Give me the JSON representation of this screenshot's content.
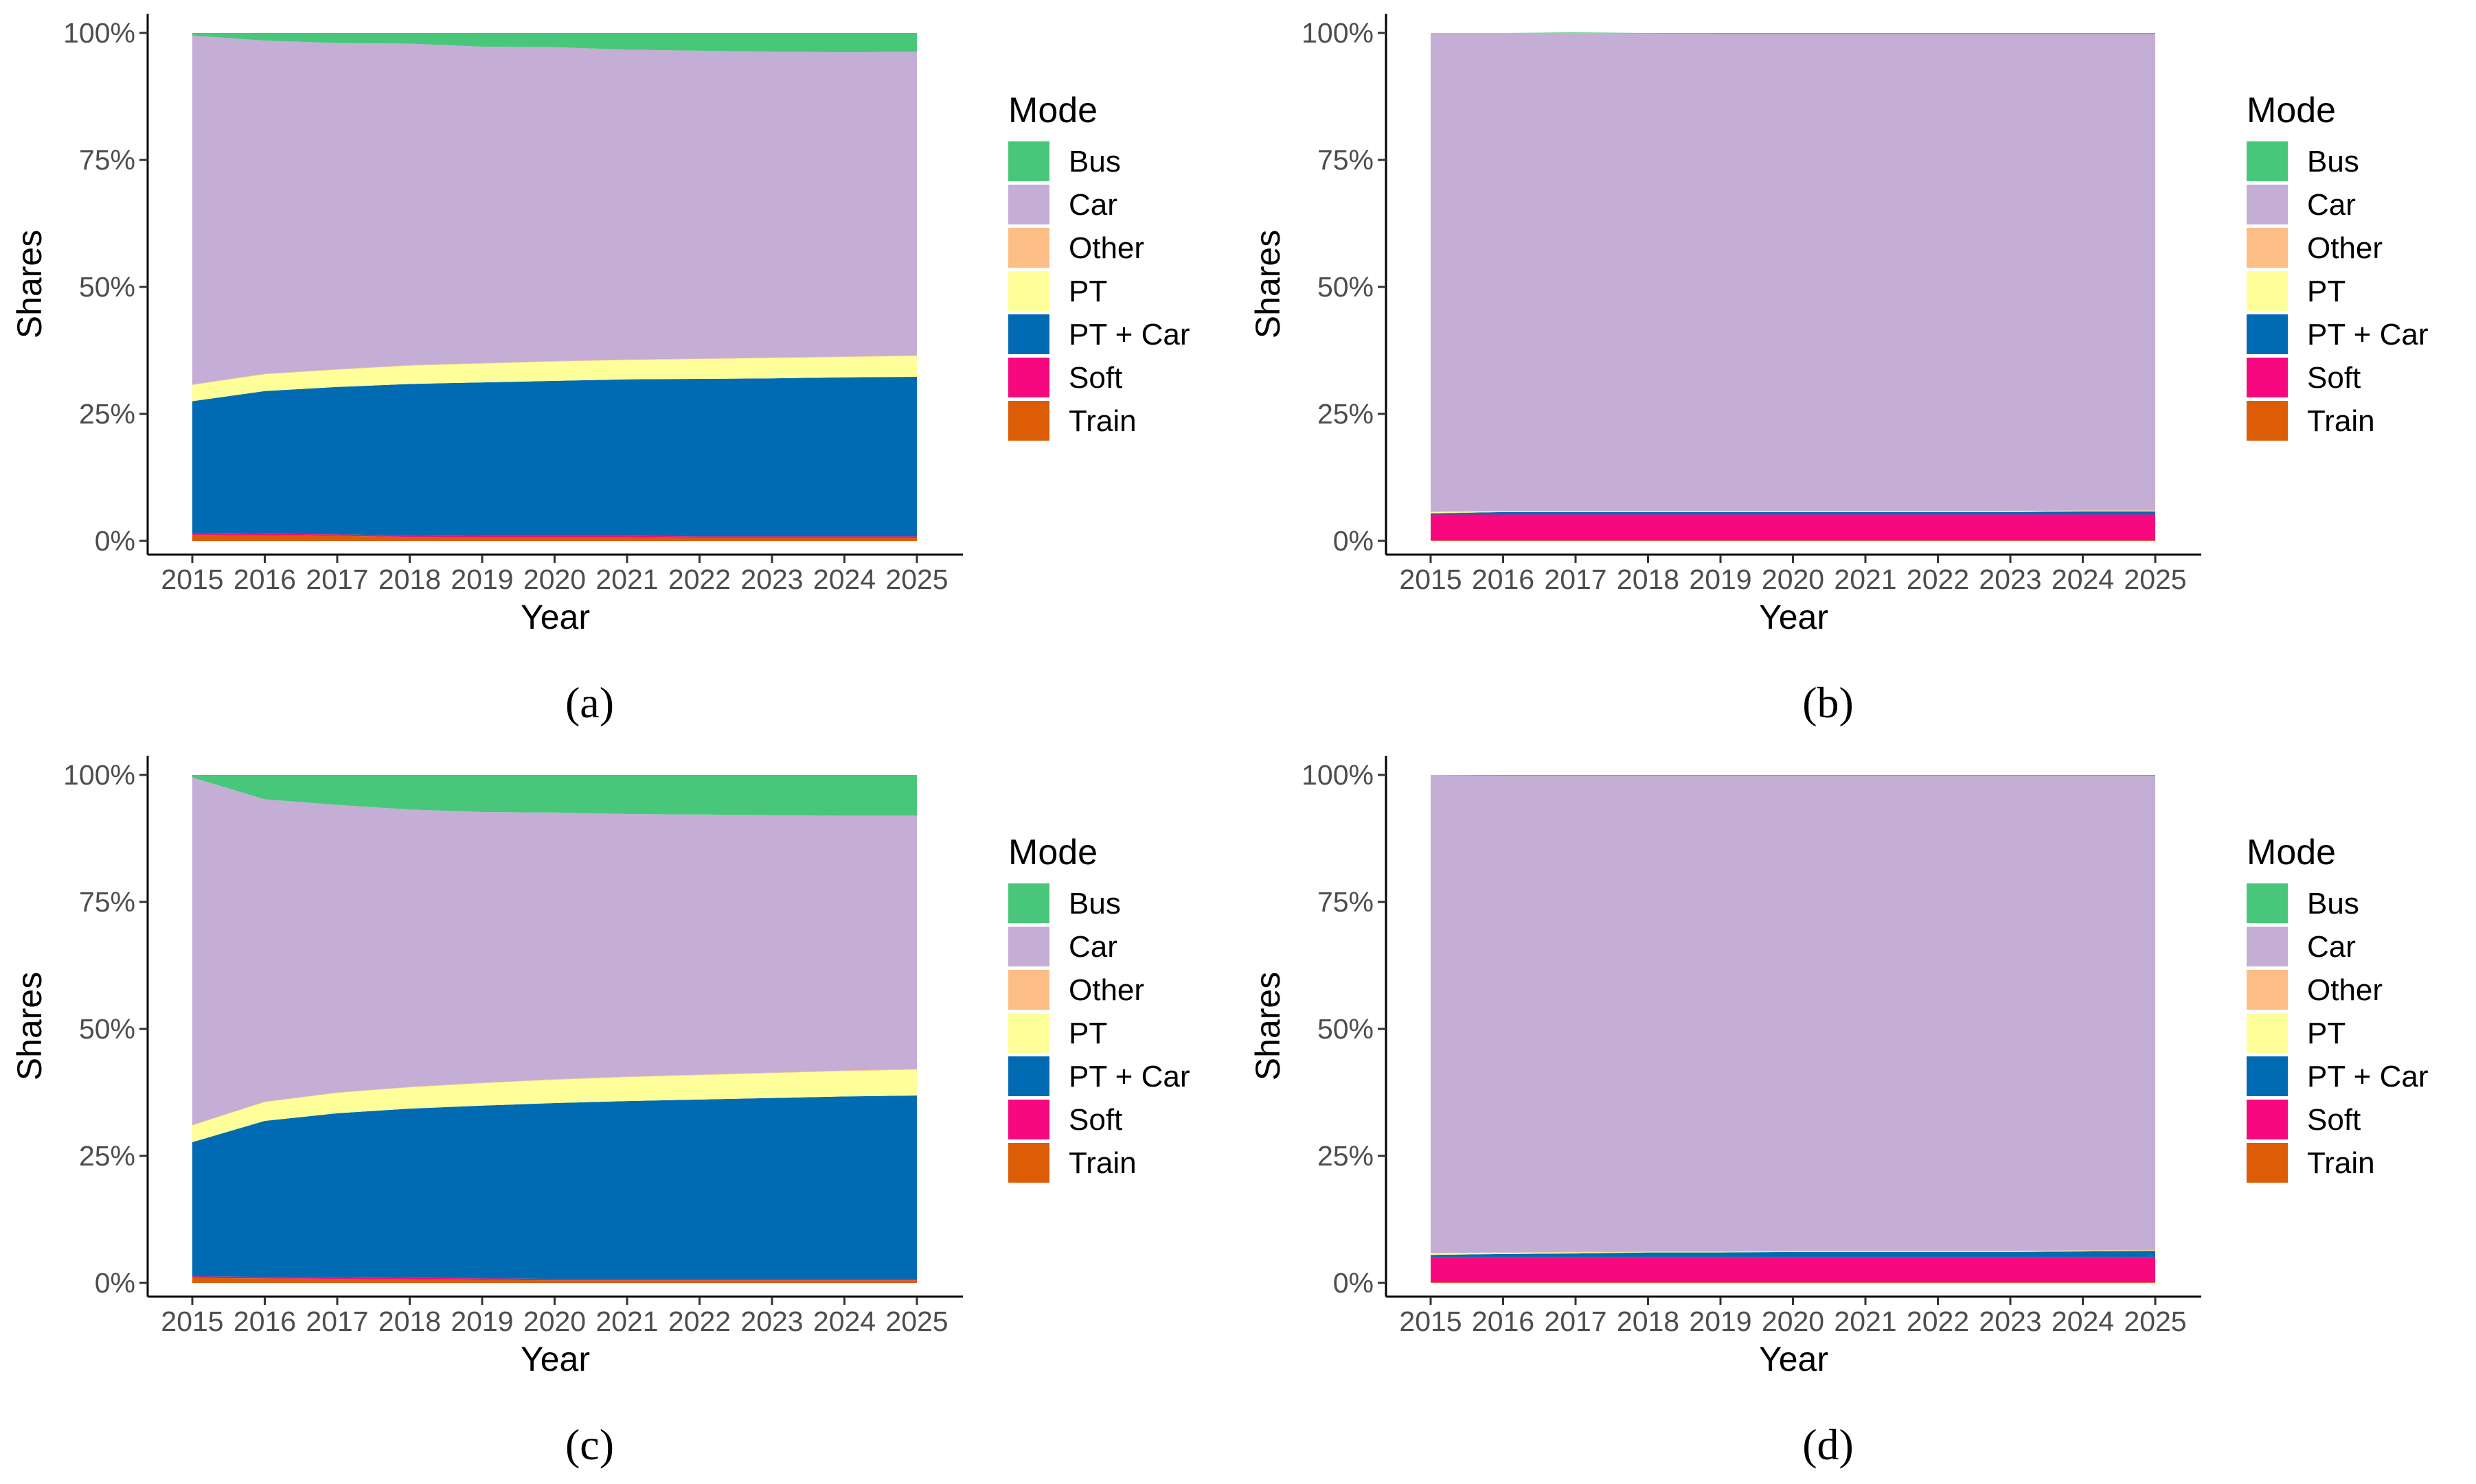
{
  "mode_colors": {
    "Bus": "#48c77b",
    "Car": "#c4aed6",
    "Other": "#fdbe85",
    "PT": "#ffff99",
    "PT + Car": "#006bb3",
    "Soft": "#f7087f",
    "Train": "#dd5c06"
  },
  "chart_data": [
    {
      "type": "area",
      "caption": "(a)",
      "xlabel": "Year",
      "ylabel": "Shares",
      "legend_title": "Mode",
      "legend_position": "right",
      "ylim": [
        0,
        100
      ],
      "y_ticks": [
        "0%",
        "25%",
        "50%",
        "75%",
        "100%"
      ],
      "x": [
        "2015",
        "2016",
        "2017",
        "2018",
        "2019",
        "2020",
        "2021",
        "2022",
        "2023",
        "2024",
        "2025"
      ],
      "series": [
        {
          "name": "Train",
          "values": [
            1.2,
            1.1,
            1.0,
            0.8,
            0.7,
            0.7,
            0.7,
            0.6,
            0.6,
            0.6,
            0.6
          ]
        },
        {
          "name": "Soft",
          "values": [
            0.3,
            0.3,
            0.3,
            0.3,
            0.3,
            0.3,
            0.3,
            0.3,
            0.3,
            0.3,
            0.3
          ]
        },
        {
          "name": "PT + Car",
          "values": [
            26.0,
            28.1,
            29.0,
            29.8,
            30.2,
            30.5,
            30.8,
            31.0,
            31.1,
            31.3,
            31.4
          ]
        },
        {
          "name": "PT",
          "values": [
            3.2,
            3.3,
            3.4,
            3.6,
            3.7,
            3.8,
            3.8,
            3.9,
            4.0,
            4.0,
            4.1
          ]
        },
        {
          "name": "Other",
          "values": [
            0.1,
            0.1,
            0.1,
            0.1,
            0.1,
            0.1,
            0.1,
            0.1,
            0.1,
            0.1,
            0.1
          ]
        },
        {
          "name": "Car",
          "values": [
            68.7,
            65.6,
            64.2,
            63.3,
            62.3,
            61.8,
            61.0,
            60.6,
            60.2,
            59.9,
            59.8
          ]
        },
        {
          "name": "Bus",
          "values": [
            0.5,
            1.5,
            2.0,
            2.1,
            2.7,
            2.8,
            3.3,
            3.5,
            3.7,
            3.8,
            3.7
          ]
        }
      ]
    },
    {
      "type": "area",
      "caption": "(b)",
      "xlabel": "Year",
      "ylabel": "Shares",
      "legend_title": "Mode",
      "legend_position": "right",
      "ylim": [
        0,
        100
      ],
      "y_ticks": [
        "0%",
        "25%",
        "50%",
        "75%",
        "100%"
      ],
      "x": [
        "2015",
        "2016",
        "2017",
        "2018",
        "2019",
        "2020",
        "2021",
        "2022",
        "2023",
        "2024",
        "2025"
      ],
      "series": [
        {
          "name": "Train",
          "values": [
            0.1,
            0.1,
            0.1,
            0.1,
            0.1,
            0.1,
            0.1,
            0.1,
            0.1,
            0.1,
            0.1
          ]
        },
        {
          "name": "Soft",
          "values": [
            5.1,
            5.1,
            5.1,
            5.1,
            5.1,
            5.1,
            5.1,
            5.1,
            5.1,
            5.1,
            5.1
          ]
        },
        {
          "name": "PT + Car",
          "values": [
            0.2,
            0.5,
            0.5,
            0.5,
            0.5,
            0.5,
            0.5,
            0.5,
            0.5,
            0.6,
            0.6
          ]
        },
        {
          "name": "PT",
          "values": [
            0.3,
            0.1,
            0.1,
            0.1,
            0.1,
            0.1,
            0.1,
            0.1,
            0.1,
            0.1,
            0.1
          ]
        },
        {
          "name": "Other",
          "values": [
            0.1,
            0.1,
            0.1,
            0.1,
            0.1,
            0.1,
            0.1,
            0.1,
            0.1,
            0.1,
            0.1
          ]
        },
        {
          "name": "Car",
          "values": [
            94.2,
            94.1,
            94.1,
            94.0,
            93.9,
            93.9,
            93.9,
            93.9,
            93.9,
            93.8,
            93.8
          ]
        },
        {
          "name": "Bus",
          "values": [
            0.0,
            0.0,
            0.1,
            0.1,
            0.2,
            0.2,
            0.2,
            0.2,
            0.2,
            0.2,
            0.2
          ]
        }
      ]
    },
    {
      "type": "area",
      "caption": "(c)",
      "xlabel": "Year",
      "ylabel": "Shares",
      "legend_title": "Mode",
      "legend_position": "right",
      "ylim": [
        0,
        100
      ],
      "y_ticks": [
        "0%",
        "25%",
        "50%",
        "75%",
        "100%"
      ],
      "x": [
        "2015",
        "2016",
        "2017",
        "2018",
        "2019",
        "2020",
        "2021",
        "2022",
        "2023",
        "2024",
        "2025"
      ],
      "series": [
        {
          "name": "Train",
          "values": [
            1.0,
            0.9,
            0.8,
            0.7,
            0.6,
            0.5,
            0.5,
            0.5,
            0.5,
            0.5,
            0.5
          ]
        },
        {
          "name": "Soft",
          "values": [
            0.3,
            0.3,
            0.3,
            0.3,
            0.3,
            0.3,
            0.3,
            0.3,
            0.3,
            0.3,
            0.3
          ]
        },
        {
          "name": "PT + Car",
          "values": [
            26.4,
            30.7,
            32.3,
            33.3,
            34.0,
            34.6,
            35.0,
            35.3,
            35.6,
            35.9,
            36.1
          ]
        },
        {
          "name": "PT",
          "values": [
            3.3,
            3.7,
            4.0,
            4.2,
            4.4,
            4.6,
            4.7,
            4.8,
            4.9,
            5.0,
            5.1
          ]
        },
        {
          "name": "Other",
          "values": [
            0.1,
            0.1,
            0.1,
            0.1,
            0.1,
            0.1,
            0.1,
            0.1,
            0.1,
            0.1,
            0.1
          ]
        },
        {
          "name": "Car",
          "values": [
            68.4,
            59.5,
            56.6,
            54.6,
            53.3,
            52.5,
            51.7,
            51.2,
            50.7,
            50.2,
            49.9
          ]
        },
        {
          "name": "Bus",
          "values": [
            0.5,
            4.8,
            5.9,
            6.8,
            7.3,
            7.4,
            7.7,
            7.8,
            7.9,
            8.0,
            8.0
          ]
        }
      ]
    },
    {
      "type": "area",
      "caption": "(d)",
      "xlabel": "Year",
      "ylabel": "Shares",
      "legend_title": "Mode",
      "legend_position": "right",
      "ylim": [
        0,
        100
      ],
      "y_ticks": [
        "0%",
        "25%",
        "50%",
        "75%",
        "100%"
      ],
      "x": [
        "2015",
        "2016",
        "2017",
        "2018",
        "2019",
        "2020",
        "2021",
        "2022",
        "2023",
        "2024",
        "2025"
      ],
      "series": [
        {
          "name": "Train",
          "values": [
            0.1,
            0.1,
            0.1,
            0.1,
            0.1,
            0.1,
            0.1,
            0.1,
            0.1,
            0.1,
            0.1
          ]
        },
        {
          "name": "Soft",
          "values": [
            5.0,
            5.0,
            5.0,
            5.0,
            5.0,
            5.0,
            5.0,
            5.0,
            5.0,
            5.0,
            5.0
          ]
        },
        {
          "name": "PT + Car",
          "values": [
            0.4,
            0.6,
            0.7,
            0.9,
            0.9,
            1.0,
            1.0,
            1.0,
            1.0,
            1.1,
            1.2
          ]
        },
        {
          "name": "PT",
          "values": [
            0.3,
            0.2,
            0.2,
            0.1,
            0.1,
            0.1,
            0.1,
            0.1,
            0.1,
            0.1,
            0.1
          ]
        },
        {
          "name": "Other",
          "values": [
            0.1,
            0.1,
            0.1,
            0.1,
            0.1,
            0.1,
            0.1,
            0.1,
            0.1,
            0.1,
            0.1
          ]
        },
        {
          "name": "Car",
          "values": [
            94.1,
            93.8,
            93.7,
            93.6,
            93.6,
            93.5,
            93.5,
            93.5,
            93.5,
            93.4,
            93.3
          ]
        },
        {
          "name": "Bus",
          "values": [
            0.0,
            0.2,
            0.2,
            0.2,
            0.2,
            0.2,
            0.2,
            0.2,
            0.2,
            0.2,
            0.2
          ]
        }
      ]
    }
  ]
}
